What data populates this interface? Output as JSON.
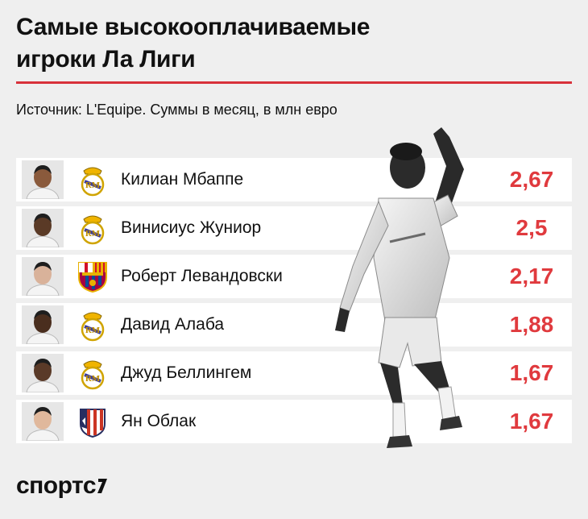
{
  "header": {
    "title_line1": "Самые высокооплачиваемые",
    "title_line2": "игроки Ла Лиги",
    "subtitle": "Источник: L'Equipe. Суммы в месяц, в млн евро"
  },
  "brand": {
    "logo_text": "спортс"
  },
  "colors": {
    "accent": "#e03a3e",
    "rule": "#d8313a",
    "background": "#efefef"
  },
  "chart_data": {
    "type": "table",
    "title": "Самые высокооплачиваемые игроки Ла Лиги",
    "subtitle": "Источник: L'Equipe. Суммы в месяц, в млн евро",
    "columns": [
      "player",
      "club",
      "salary"
    ],
    "rows": [
      {
        "player": "Килиан Мбаппе",
        "club_icon": "real-madrid-crest-icon",
        "value": 2.67,
        "value_label": "2,67"
      },
      {
        "player": "Винисиус Жуниор",
        "club_icon": "real-madrid-crest-icon",
        "value": 2.5,
        "value_label": "2,5"
      },
      {
        "player": "Роберт Левандовски",
        "club_icon": "barcelona-crest-icon",
        "value": 2.17,
        "value_label": "2,17"
      },
      {
        "player": "Давид Алаба",
        "club_icon": "real-madrid-crest-icon",
        "value": 1.88,
        "value_label": "1,88"
      },
      {
        "player": "Джуд Беллингем",
        "club_icon": "real-madrid-crest-icon",
        "value": 1.67,
        "value_label": "1,67"
      },
      {
        "player": "Ян Облак",
        "club_icon": "atletico-madrid-crest-icon",
        "value": 1.67,
        "value_label": "1,67"
      }
    ]
  }
}
